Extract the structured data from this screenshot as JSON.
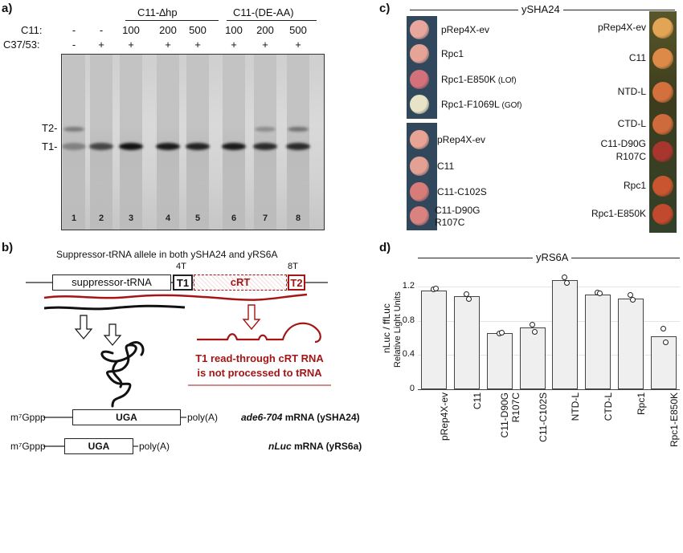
{
  "panels": {
    "a": "a)",
    "b": "b)",
    "c": "c)",
    "d": "d)"
  },
  "panel_a": {
    "row_c11_label": "C11:",
    "row_c3753_label": "C37/53:",
    "group1": "C11-∆hp",
    "group2": "C11-(DE-AA)",
    "c11_values": [
      "-",
      "-",
      "100",
      "200",
      "500",
      "100",
      "200",
      "500"
    ],
    "c3753_values": [
      "-",
      "+",
      "+",
      "+",
      "+",
      "+",
      "+",
      "+"
    ],
    "lanes": [
      "1",
      "2",
      "3",
      "4",
      "5",
      "6",
      "7",
      "8"
    ],
    "t2_label": "T2-",
    "t1_label": "T1-"
  },
  "panel_b": {
    "title": "Suppressor-tRNA allele in both ySHA24 and yRS6A",
    "suppressor_label": "suppressor-tRNA",
    "t1": "T1",
    "crt": "cRT",
    "t2": "T2",
    "four_t": "4T",
    "eight_t": "8T",
    "readthrough_line1": "T1 read-through cRT RNA",
    "readthrough_line2": "is not processed to tRNA",
    "mrna1_cap": "m⁷Gppp",
    "mrna1_codon": "UGA",
    "mrna1_tail": "poly(A)",
    "mrna1_name": "ade6-704",
    "mrna1_suffix": " mRNA (ySHA24)",
    "mrna2_cap": "m⁷Gppp",
    "mrna2_codon": "UGA",
    "mrna2_tail": "poly(A)",
    "mrna2_name": "nLuc",
    "mrna2_suffix": " mRNA (yRS6a)"
  },
  "panel_c": {
    "strain": "ySHA24",
    "plate1": [
      {
        "label": "pRep4X-ev",
        "suffix": "",
        "color": "#e8a79c"
      },
      {
        "label": "Rpc1",
        "suffix": "",
        "color": "#e6a397"
      },
      {
        "label": "Rpc1-E850K",
        "suffix": " (LOf)",
        "color": "#d2717a"
      },
      {
        "label": "Rpc1-F1069L",
        "suffix": " (GOf)",
        "color": "#e8e2c6"
      }
    ],
    "plate2": [
      {
        "label": "pRep4X-ev",
        "suffix": "",
        "color": "#e7a394"
      },
      {
        "label": "C11",
        "suffix": "",
        "color": "#e3a193"
      },
      {
        "label": "C11-C102S",
        "suffix": "",
        "color": "#d87c7a"
      },
      {
        "label": "C11-D90G",
        "suffix": "",
        "label2": "R107C",
        "color": "#d98280"
      }
    ],
    "plate3": [
      {
        "label": "pRep4X-ev",
        "color": "#e2a455"
      },
      {
        "label": "C11",
        "color": "#dd8a48"
      },
      {
        "label": "NTD-L",
        "color": "#d2703e"
      },
      {
        "label": "CTD-L",
        "color": "#cf6a3d"
      },
      {
        "label": "C11-D90G",
        "label2": "R107C",
        "color": "#a8352e"
      },
      {
        "label": "Rpc1",
        "color": "#c8552f"
      },
      {
        "label": "Rpc1-E850K",
        "color": "#c3492e"
      }
    ]
  },
  "panel_d": {
    "strain": "yRS6A",
    "ylabel1": "nLuc / ffLuc",
    "ylabel2": "Relative Light Units",
    "yticks": [
      "0",
      "0.4",
      "0.8",
      "1.2"
    ]
  },
  "chart_data": {
    "type": "bar",
    "categories": [
      "pRep4X-ev",
      "C11",
      "C11-D90G R107C",
      "C11-C102S",
      "NTD-L",
      "CTD-L",
      "Rpc1",
      "Rpc1-E850K"
    ],
    "values": [
      1.16,
      1.09,
      0.66,
      0.72,
      1.28,
      1.11,
      1.06,
      0.62
    ],
    "points": [
      [
        1.17,
        1.18
      ],
      [
        1.12,
        1.06
      ],
      [
        0.66,
        0.67
      ],
      [
        0.76,
        0.68
      ],
      [
        1.32,
        1.25
      ],
      [
        1.14,
        1.13
      ],
      [
        1.11,
        1.05
      ],
      [
        0.71,
        0.55
      ]
    ],
    "ylabel": "nLuc / ffLuc Relative Light Units",
    "ylim": [
      0,
      1.4
    ],
    "grid": true
  }
}
